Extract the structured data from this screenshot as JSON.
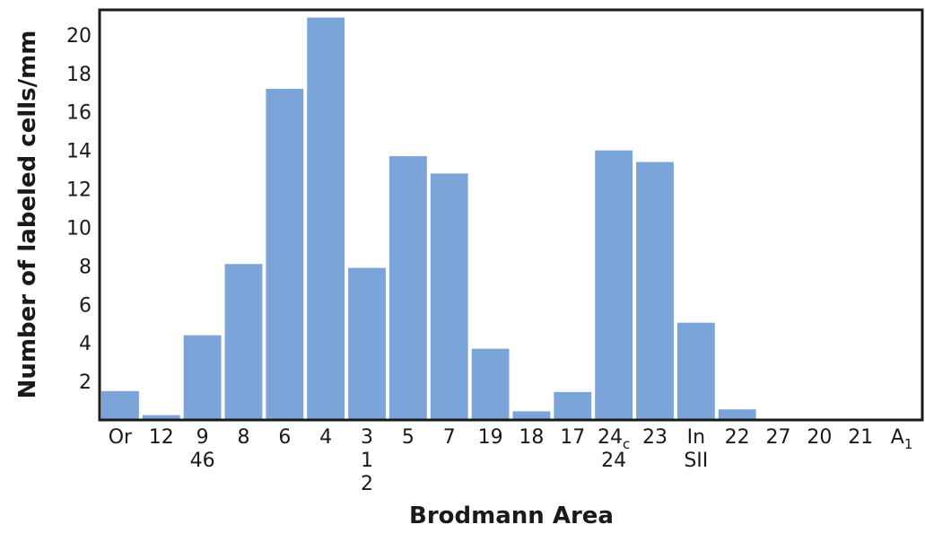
{
  "chart_data": {
    "type": "bar",
    "xlabel": "Brodmann Area",
    "ylabel": "Number of labeled cells/mm",
    "ylim": [
      0,
      21.3
    ],
    "yticks": [
      2,
      4,
      6,
      8,
      10,
      12,
      14,
      16,
      18,
      20
    ],
    "grid": false,
    "bar_color": "#7BA4D9",
    "categories": [
      {
        "lines": [
          "Or"
        ],
        "value": 1.5
      },
      {
        "lines": [
          "12"
        ],
        "value": 0.25
      },
      {
        "lines": [
          "9",
          "46"
        ],
        "value": 4.4
      },
      {
        "lines": [
          "8"
        ],
        "value": 8.1
      },
      {
        "lines": [
          "6"
        ],
        "value": 17.2
      },
      {
        "lines": [
          "4"
        ],
        "value": 20.9
      },
      {
        "lines": [
          "3",
          "1",
          "2"
        ],
        "value": 7.9
      },
      {
        "lines": [
          "5"
        ],
        "value": 13.7
      },
      {
        "lines": [
          "7"
        ],
        "value": 12.8
      },
      {
        "lines": [
          "19"
        ],
        "value": 3.7
      },
      {
        "lines": [
          "18"
        ],
        "value": 0.45
      },
      {
        "lines": [
          "17"
        ],
        "value": 1.45
      },
      {
        "lines": [
          "24c",
          "24"
        ],
        "subscript_first": "c",
        "value": 14.0
      },
      {
        "lines": [
          "23"
        ],
        "value": 13.4
      },
      {
        "lines": [
          "In",
          "SII"
        ],
        "value": 5.05
      },
      {
        "lines": [
          "22"
        ],
        "value": 0.55
      },
      {
        "lines": [
          "27"
        ],
        "value": 0
      },
      {
        "lines": [
          "20"
        ],
        "value": 0
      },
      {
        "lines": [
          "21"
        ],
        "value": 0
      },
      {
        "lines": [
          "A1"
        ],
        "subscript_first": "1",
        "value": 0
      }
    ]
  }
}
